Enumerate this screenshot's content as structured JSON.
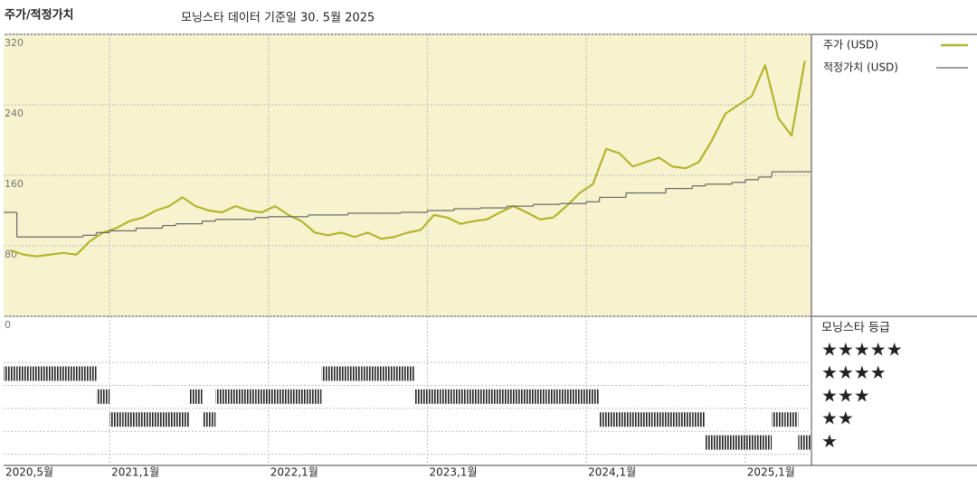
{
  "chart_data": [
    {
      "type": "line",
      "title": "주가/적정가치",
      "subtitle": "모닝스타 데이터 기준일 30. 5월 2025",
      "categories": [
        "2020,5월",
        null,
        null,
        null,
        null,
        null,
        null,
        null,
        "2021,1월",
        null,
        null,
        null,
        null,
        null,
        null,
        null,
        null,
        null,
        null,
        null,
        "2022,1월",
        null,
        null,
        null,
        null,
        null,
        null,
        null,
        null,
        null,
        null,
        null,
        "2023,1월",
        null,
        null,
        null,
        null,
        null,
        null,
        null,
        null,
        null,
        null,
        null,
        "2024,1월",
        null,
        null,
        null,
        null,
        null,
        null,
        null,
        null,
        null,
        null,
        null,
        "2025,1월",
        null,
        null,
        null,
        null
      ],
      "series": [
        {
          "name": "주가 (USD)",
          "color": "#b3b52e",
          "values": [
            75,
            70,
            68,
            70,
            72,
            70,
            85,
            95,
            100,
            108,
            112,
            120,
            125,
            135,
            125,
            120,
            118,
            125,
            120,
            118,
            125,
            115,
            108,
            95,
            92,
            95,
            90,
            95,
            88,
            90,
            95,
            98,
            115,
            112,
            105,
            108,
            110,
            118,
            125,
            118,
            110,
            112,
            125,
            140,
            150,
            190,
            185,
            170,
            175,
            180,
            170,
            168,
            175,
            200,
            230,
            240,
            250,
            285,
            225,
            205,
            290
          ]
        },
        {
          "name": "적정가치 (USD)",
          "color": "#666666",
          "step": true,
          "values": [
            118,
            90,
            90,
            90,
            90,
            90,
            92,
            95,
            97,
            97,
            100,
            100,
            103,
            105,
            105,
            108,
            110,
            110,
            110,
            112,
            113,
            113,
            113,
            115,
            115,
            115,
            117,
            117,
            117,
            117,
            118,
            118,
            120,
            120,
            122,
            122,
            123,
            123,
            125,
            125,
            127,
            127,
            128,
            128,
            130,
            135,
            135,
            140,
            140,
            140,
            145,
            145,
            148,
            150,
            150,
            152,
            155,
            158,
            164,
            164,
            164
          ]
        }
      ],
      "ylim": [
        0,
        320
      ],
      "yticks": [
        0,
        80,
        160,
        240,
        320
      ],
      "grid": true,
      "legend": "right"
    },
    {
      "type": "rating",
      "title": "모닝스타 등급",
      "values": [
        4,
        4,
        4,
        4,
        4,
        4,
        4,
        3,
        2,
        2,
        2,
        2,
        2,
        2,
        3,
        2,
        3,
        3,
        3,
        3,
        3,
        3,
        3,
        3,
        4,
        4,
        4,
        4,
        4,
        4,
        4,
        3,
        3,
        3,
        3,
        3,
        3,
        3,
        3,
        3,
        3,
        3,
        3,
        3,
        3,
        2,
        2,
        2,
        2,
        2,
        2,
        2,
        2,
        1,
        1,
        1,
        1,
        1,
        2,
        2,
        1
      ],
      "ylim": [
        0,
        6.5
      ],
      "yticks": [
        {
          "value": 5,
          "label": "★★★★★"
        },
        {
          "value": 4,
          "label": "★★★★"
        },
        {
          "value": 3,
          "label": "★★★"
        },
        {
          "value": 2,
          "label": "★★"
        },
        {
          "value": 1,
          "label": "★"
        }
      ],
      "color": "#222222"
    }
  ]
}
